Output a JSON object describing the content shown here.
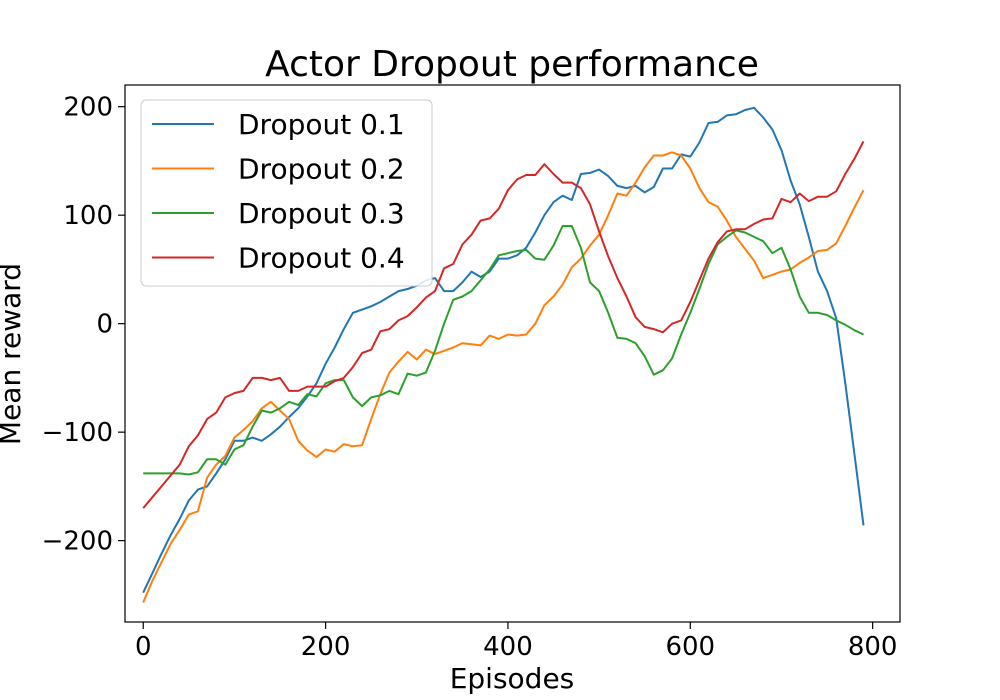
{
  "chart_data": {
    "type": "line",
    "title": "Actor Dropout performance",
    "xlabel": "Episodes",
    "ylabel": "Mean reward",
    "xlim": [
      -20,
      830
    ],
    "ylim": [
      -275,
      220
    ],
    "xticks": [
      0,
      200,
      400,
      600,
      800
    ],
    "xtick_labels": [
      "0",
      "200",
      "400",
      "600",
      "800"
    ],
    "yticks": [
      -200,
      -100,
      0,
      100,
      200
    ],
    "ytick_labels": [
      "−200",
      "−100",
      "0",
      "100",
      "200"
    ],
    "grid": false,
    "legend": "upper-left",
    "x": [
      0,
      10,
      20,
      30,
      40,
      50,
      60,
      70,
      80,
      90,
      100,
      110,
      120,
      130,
      140,
      150,
      160,
      170,
      180,
      190,
      200,
      210,
      220,
      230,
      240,
      250,
      260,
      270,
      280,
      290,
      300,
      310,
      320,
      330,
      340,
      350,
      360,
      370,
      380,
      390,
      400,
      410,
      420,
      430,
      440,
      450,
      460,
      470,
      480,
      490,
      500,
      510,
      520,
      530,
      540,
      550,
      560,
      570,
      580,
      590,
      600,
      610,
      620,
      630,
      640,
      650,
      660,
      670,
      680,
      690,
      700,
      710,
      720,
      730,
      740,
      750,
      760,
      770,
      780,
      790
    ],
    "series": [
      {
        "name": "Dropout 0.1",
        "color": "#1f77b4",
        "values": [
          -248,
          -230,
          -212,
          -195,
          -180,
          -163,
          -153,
          -150,
          -138,
          -125,
          -108,
          -108,
          -105,
          -108,
          -102,
          -95,
          -86,
          -78,
          -67,
          -55,
          -37,
          -22,
          -5,
          10,
          13,
          16,
          20,
          25,
          30,
          32,
          35,
          40,
          42,
          30,
          30,
          38,
          48,
          43,
          48,
          60,
          60,
          63,
          70,
          84,
          100,
          112,
          118,
          114,
          138,
          139,
          142,
          136,
          127,
          125,
          127,
          121,
          126,
          143,
          143,
          156,
          154,
          167,
          185,
          186,
          192,
          193,
          197,
          199,
          190,
          179,
          160,
          132,
          110,
          80,
          48,
          30,
          5,
          -55,
          -120,
          -186
        ]
      },
      {
        "name": "Dropout 0.2",
        "color": "#ff7f0e",
        "values": [
          -257,
          -237,
          -220,
          -203,
          -190,
          -176,
          -173,
          -142,
          -130,
          -122,
          -105,
          -98,
          -90,
          -78,
          -72,
          -80,
          -88,
          -108,
          -117,
          -123,
          -116,
          -118,
          -111,
          -113,
          -112,
          -88,
          -65,
          -45,
          -35,
          -26,
          -33,
          -24,
          -28,
          -25,
          -22,
          -18,
          -19,
          -20,
          -11,
          -14,
          -10,
          -11,
          -10,
          0,
          17,
          25,
          36,
          52,
          60,
          72,
          82,
          100,
          120,
          118,
          130,
          144,
          155,
          155,
          158,
          155,
          143,
          125,
          112,
          108,
          95,
          80,
          69,
          58,
          42,
          45,
          48,
          50,
          56,
          61,
          67,
          68,
          74,
          90,
          107,
          123
        ]
      },
      {
        "name": "Dropout 0.3",
        "color": "#2ca02c",
        "values": [
          -138,
          -138,
          -138,
          -138,
          -138,
          -139,
          -137,
          -125,
          -125,
          -130,
          -116,
          -112,
          -95,
          -80,
          -82,
          -78,
          -72,
          -75,
          -65,
          -67,
          -55,
          -52,
          -52,
          -68,
          -76,
          -68,
          -66,
          -62,
          -65,
          -46,
          -48,
          -45,
          -25,
          0,
          22,
          25,
          30,
          40,
          50,
          63,
          65,
          67,
          68,
          60,
          59,
          72,
          90,
          90,
          70,
          38,
          30,
          10,
          -13,
          -14,
          -18,
          -30,
          -47,
          -43,
          -32,
          -10,
          10,
          32,
          55,
          73,
          80,
          86,
          84,
          80,
          76,
          65,
          70,
          50,
          25,
          10,
          10,
          8,
          3,
          -1,
          -6,
          -10
        ]
      },
      {
        "name": "Dropout 0.4",
        "color": "#d62728",
        "values": [
          -170,
          -160,
          -150,
          -140,
          -130,
          -113,
          -103,
          -88,
          -82,
          -68,
          -64,
          -62,
          -50,
          -50,
          -52,
          -50,
          -62,
          -62,
          -58,
          -58,
          -58,
          -53,
          -50,
          -40,
          -27,
          -24,
          -7,
          -5,
          3,
          7,
          15,
          24,
          30,
          51,
          55,
          73,
          82,
          95,
          97,
          106,
          123,
          133,
          137,
          137,
          147,
          138,
          130,
          130,
          125,
          110,
          85,
          62,
          42,
          25,
          6,
          -3,
          -5,
          -8,
          0,
          3,
          20,
          40,
          60,
          75,
          85,
          87,
          87,
          92,
          96,
          97,
          115,
          112,
          120,
          113,
          117,
          117,
          122,
          138,
          152,
          168
        ]
      }
    ]
  }
}
